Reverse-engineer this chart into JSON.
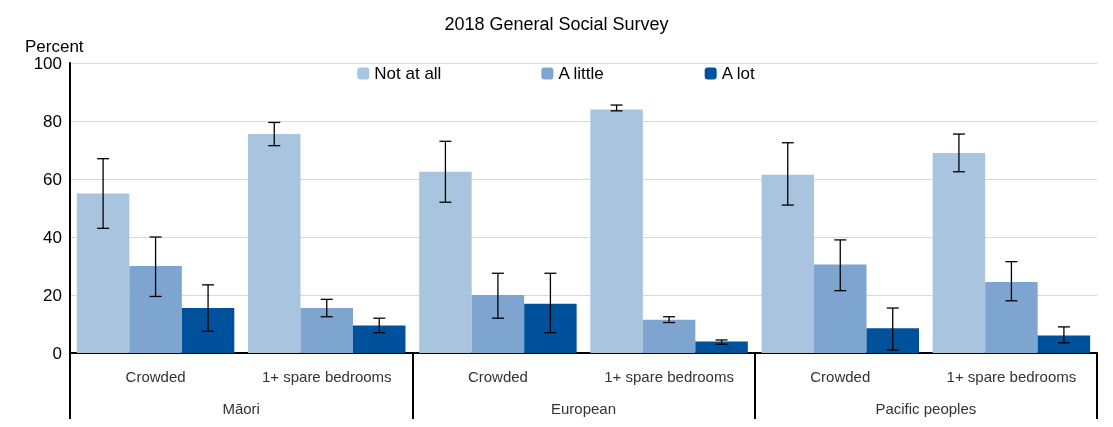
{
  "chart_data": {
    "type": "bar",
    "title": "2018 General Social Survey",
    "ylabel": "Percent",
    "categories": [
      "Crowded",
      "1+ spare bedrooms",
      "Crowded",
      "1+ spare bedrooms",
      "Crowded",
      "1+ spare bedrooms"
    ],
    "annotations": [
      "Māori",
      "European",
      "Pacific peoples"
    ],
    "series": [
      {
        "name": "Not at all",
        "color": "#a9c4df",
        "values": [
          55,
          75.5,
          62.5,
          84,
          61.5,
          69
        ],
        "errors": [
          [
            43,
            67
          ],
          [
            71.5,
            79.5
          ],
          [
            52,
            73
          ],
          [
            83.5,
            85.5
          ],
          [
            51,
            72.5
          ],
          [
            62.5,
            75.5
          ]
        ]
      },
      {
        "name": "A little",
        "color": "#7ea5cf",
        "values": [
          30,
          15.5,
          20,
          11.5,
          30.5,
          24.5
        ],
        "errors": [
          [
            19.5,
            40
          ],
          [
            12.5,
            18.5
          ],
          [
            12,
            27.5
          ],
          [
            10.5,
            12.5
          ],
          [
            21.5,
            39
          ],
          [
            18,
            31.5
          ]
        ]
      },
      {
        "name": "A lot",
        "color": "#00519c",
        "values": [
          15.5,
          9.5,
          17,
          4,
          8.5,
          6
        ],
        "errors": [
          [
            7.5,
            23.5
          ],
          [
            7,
            12
          ],
          [
            7,
            27.5
          ],
          [
            3,
            4.5
          ],
          [
            1,
            15.5
          ],
          [
            3.5,
            9
          ]
        ]
      }
    ],
    "ylim": [
      0,
      100
    ],
    "yticks": [
      0,
      20,
      40,
      60,
      80,
      100
    ],
    "grid": "y",
    "legend": "top"
  }
}
